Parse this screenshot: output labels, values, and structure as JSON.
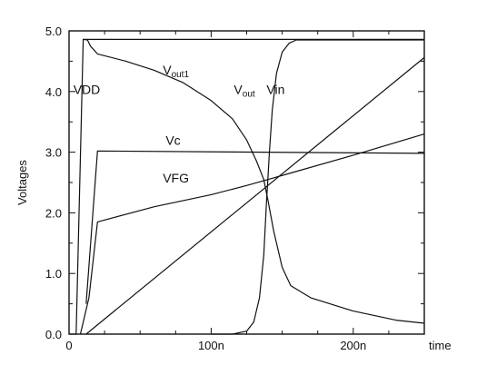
{
  "chart_data": {
    "type": "line",
    "title": "",
    "xlabel": "time",
    "ylabel": "Voltages",
    "xlim": [
      0,
      250
    ],
    "ylim": [
      0,
      5
    ],
    "x_unit": "ns",
    "xticks": [
      0,
      100,
      200
    ],
    "xtick_labels": [
      "0",
      "100n",
      "200n"
    ],
    "yticks": [
      0,
      1,
      2,
      3,
      4,
      5
    ],
    "ytick_labels": [
      "0.0",
      "1.0",
      "2.0",
      "3.0",
      "4.0",
      "5.0"
    ],
    "grid": false,
    "legend": "none",
    "series": [
      {
        "name": "VDD",
        "x": [
          0,
          5,
          10,
          12,
          250
        ],
        "y": [
          0,
          0,
          4.86,
          4.86,
          4.86
        ]
      },
      {
        "name": "Vin",
        "x": [
          12,
          250
        ],
        "y": [
          0,
          4.56
        ]
      },
      {
        "name": "Vc",
        "x": [
          12,
          20,
          250
        ],
        "y": [
          0.5,
          3.02,
          2.98
        ]
      },
      {
        "name": "VFG",
        "x": [
          8,
          14,
          20,
          60,
          100,
          125,
          140,
          155,
          200,
          250
        ],
        "y": [
          0,
          0.6,
          1.85,
          2.1,
          2.3,
          2.45,
          2.55,
          2.65,
          2.95,
          3.3
        ]
      },
      {
        "name": "Vout1",
        "x": [
          10,
          13,
          15,
          20,
          40,
          60,
          80,
          100,
          115,
          125,
          132,
          137,
          140,
          144,
          150,
          156,
          170,
          200,
          230,
          250
        ],
        "y": [
          4.86,
          4.85,
          4.75,
          4.62,
          4.5,
          4.35,
          4.15,
          3.85,
          3.55,
          3.2,
          2.85,
          2.55,
          2.2,
          1.7,
          1.1,
          0.8,
          0.6,
          0.38,
          0.23,
          0.18
        ]
      },
      {
        "name": "Vout",
        "x": [
          100,
          115,
          125,
          130,
          134,
          137,
          139,
          140,
          141,
          143,
          146,
          150,
          155,
          160,
          250
        ],
        "y": [
          0,
          0,
          0.05,
          0.2,
          0.6,
          1.3,
          2.2,
          2.6,
          3.0,
          3.7,
          4.3,
          4.65,
          4.8,
          4.85,
          4.85
        ]
      }
    ],
    "series_labels": {
      "VDD": {
        "main": "VDD",
        "sub": ""
      },
      "Vin": {
        "main": "Vin",
        "sub": ""
      },
      "Vc": {
        "main": "Vc",
        "sub": ""
      },
      "VFG": {
        "main": "VFG",
        "sub": ""
      },
      "Vout1": {
        "main": "V",
        "sub": "out1"
      },
      "Vout": {
        "main": "V",
        "sub": "out"
      }
    },
    "series_label_anchor": {
      "VDD": [
        3,
        3.96
      ],
      "Vin": [
        139,
        3.96
      ],
      "Vc": [
        68,
        3.12
      ],
      "VFG": [
        66,
        2.5
      ],
      "Vout1": [
        66,
        4.28
      ],
      "Vout": [
        116,
        3.96
      ]
    }
  }
}
